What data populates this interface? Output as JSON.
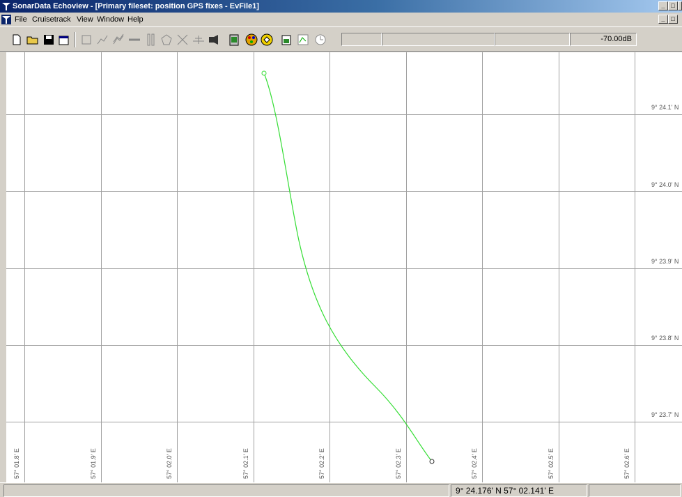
{
  "window": {
    "title": "SonarData Echoview - [Primary fileset: position GPS fixes  - EvFile1]"
  },
  "menu": [
    "File",
    "Cruisetrack",
    "View",
    "Window",
    "Help"
  ],
  "toolbar": {
    "icons": [
      "new-file-icon",
      "open-folder-icon",
      "save-icon",
      "properties-icon",
      "rectangle-tool-icon",
      "polyline-tool-icon",
      "region-tool-icon",
      "horizontal-line-tool-icon",
      "vertical-line-tool-icon",
      "polygon-tool-icon",
      "zoom-tool-icon",
      "measure-tool-icon",
      "echogram-icon",
      "export-icon",
      "palette-icon",
      "color-icon",
      "settings-icon",
      "map-icon",
      "clock-icon"
    ],
    "threshold": "-70.00dB"
  },
  "map": {
    "y_labels": [
      "9° 24.1' N",
      "9° 24.0' N",
      "9° 23.9' N",
      "9° 23.8' N",
      "9° 23.7' N"
    ],
    "x_labels": [
      "57° 01.8' E",
      "57° 01.9' E",
      "57° 02.0' E",
      "57° 02.1' E",
      "57° 02.2' E",
      "57° 02.3' E",
      "57° 02.4' E",
      "57° 02.5' E",
      "57° 02.6' E"
    ],
    "track_color": "#33dd33",
    "track_start": {
      "lon_min": 2.114,
      "lat_min": 24.153
    },
    "track_end": {
      "lon_min": 2.341,
      "lat_min": 23.651
    }
  },
  "status": {
    "position": "9° 24.176' N 57° 02.141' E"
  }
}
